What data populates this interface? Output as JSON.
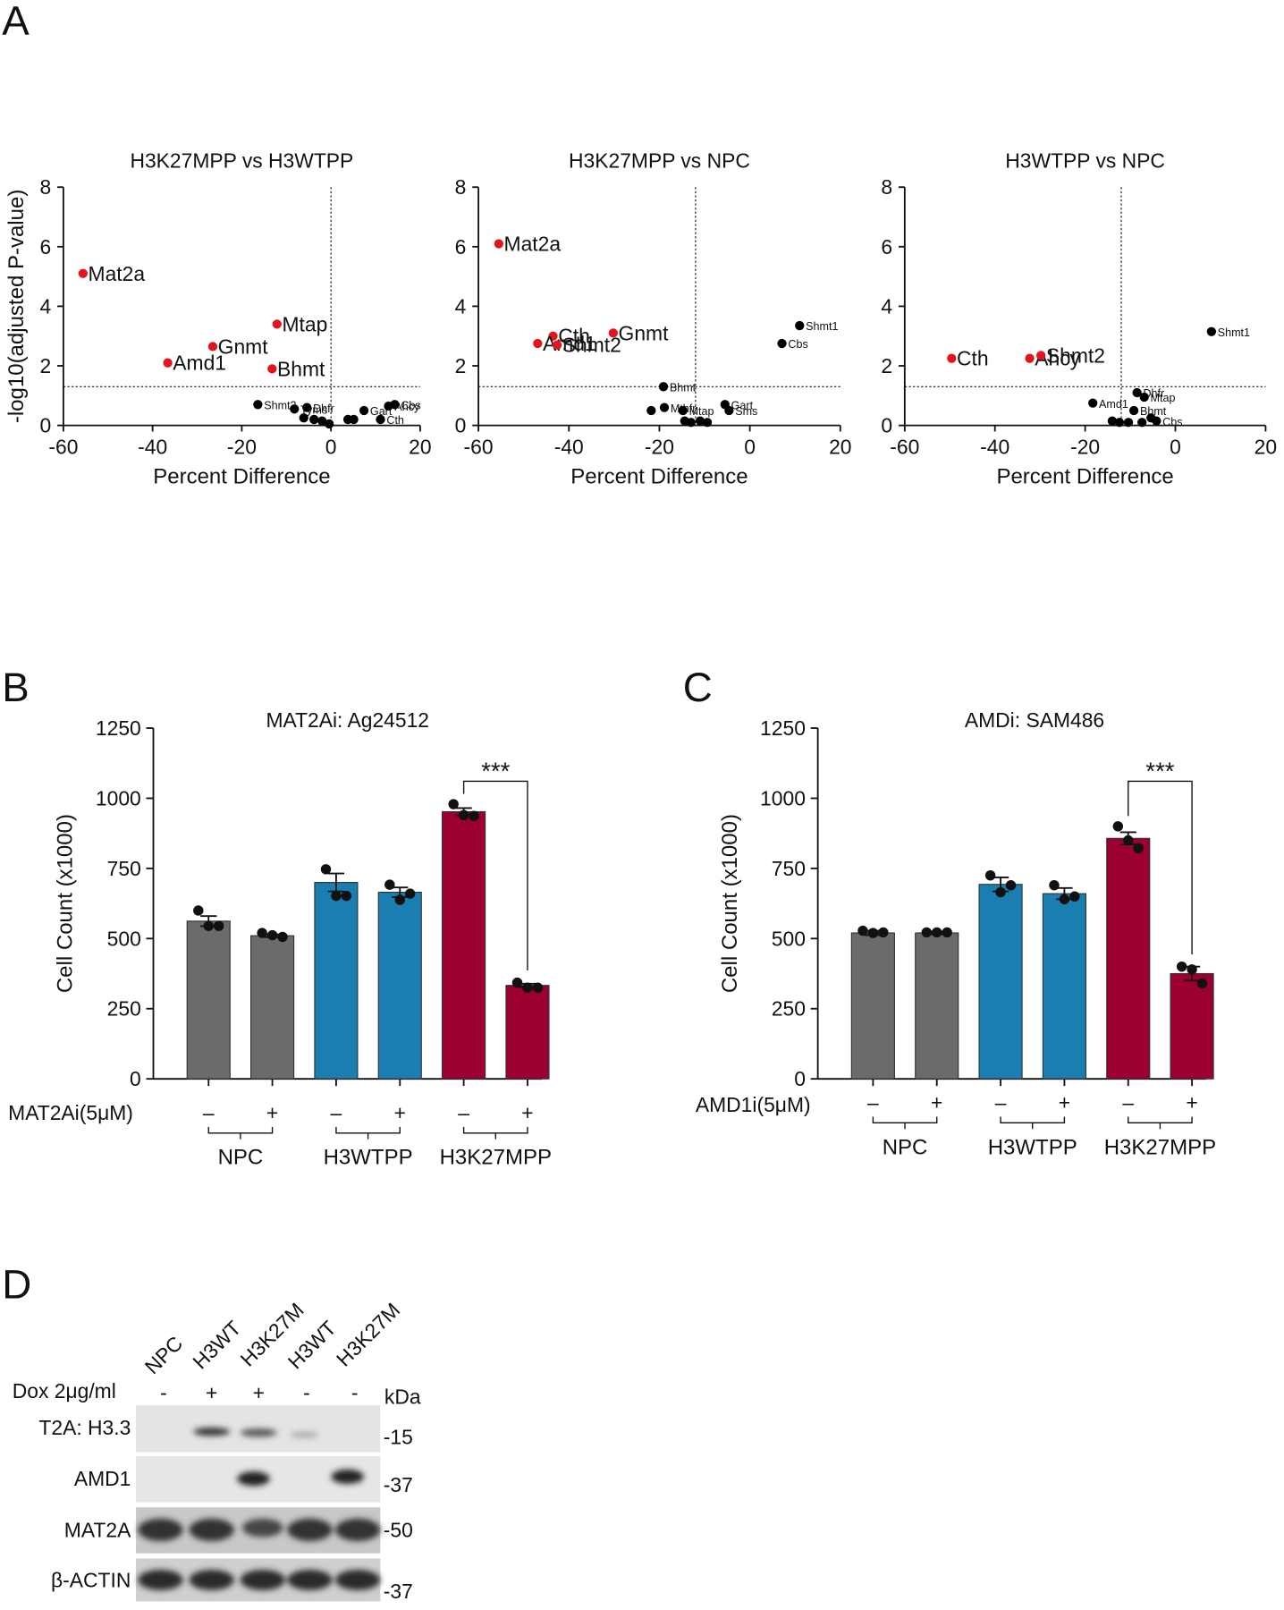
{
  "panel_labels": [
    "A",
    "B",
    "C",
    "D"
  ],
  "chart_data": [
    {
      "type": "scatter",
      "title": "H3K27MPP vs H3WTPP",
      "xlabel": "Percent Difference",
      "ylabel": "-log10(adjusted P-value)",
      "xlim": [
        -60,
        20
      ],
      "ylim": [
        0,
        8
      ],
      "xticks": [
        -60,
        -40,
        -20,
        0,
        20
      ],
      "yticks": [
        0,
        2,
        4,
        6,
        8
      ],
      "hline": 1.3,
      "vline": 0,
      "series": [
        {
          "color": "#e3141b",
          "label_size": "large",
          "x": [
            -55.6,
            -26.5,
            -36.6,
            -12.1,
            -13.2
          ],
          "y": [
            5.1,
            2.65,
            2.1,
            3.4,
            1.9
          ],
          "labels": [
            "Mat2a",
            "Gnmt",
            "Amd1",
            "Mtap",
            "Bhmt"
          ]
        },
        {
          "color": "#000000",
          "label_size": "small",
          "x": [
            -16.4,
            -5.4,
            -8.2,
            -6.1,
            -3.8,
            -2,
            -0.4,
            3.8,
            5.1,
            7.4,
            12.9,
            14.3,
            11.1
          ],
          "y": [
            0.7,
            0.6,
            0.55,
            0.25,
            0.2,
            0.15,
            0.05,
            0.2,
            0.2,
            0.5,
            0.65,
            0.7,
            0.2
          ],
          "labels": [
            "Shmt2",
            "Dhfr",
            "Tyms",
            null,
            null,
            null,
            null,
            null,
            null,
            "Gart",
            "Ahcy",
            "Cbs",
            "Cth"
          ]
        }
      ]
    },
    {
      "type": "scatter",
      "title": "H3K27MPP vs NPC",
      "xlabel": "Percent Difference",
      "xlim": [
        -60,
        20
      ],
      "ylim": [
        0,
        8
      ],
      "xticks": [
        -60,
        -40,
        -20,
        0,
        20
      ],
      "yticks": [
        0,
        2,
        4,
        6,
        8
      ],
      "hline": 1.3,
      "vline": -12,
      "series": [
        {
          "color": "#e3141b",
          "label_size": "large",
          "x": [
            -55.5,
            -43.5,
            -46.9,
            -42.6,
            -30.2
          ],
          "y": [
            6.1,
            3.0,
            2.75,
            2.7,
            3.1
          ],
          "labels": [
            "Mat2a",
            "Cth",
            "Amd1",
            "Shmt2",
            "Gnmt"
          ]
        },
        {
          "color": "#000000",
          "label_size": "small",
          "x": [
            11,
            7.1,
            -19.1,
            -18.9,
            -21.8,
            -14.8,
            -5.5,
            -4.6,
            -14.4,
            -13,
            -11,
            -9.4
          ],
          "y": [
            3.35,
            2.75,
            1.3,
            0.6,
            0.5,
            0.5,
            0.7,
            0.5,
            0.15,
            0.1,
            0.15,
            0.1
          ],
          "labels": [
            "Shmt1",
            "Cbs",
            "Bhmt",
            "Mthfr",
            null,
            "Mtap",
            "Gart",
            "Sms",
            null,
            null,
            null,
            null
          ]
        }
      ]
    },
    {
      "type": "scatter",
      "title": "H3WTPP vs NPC",
      "xlabel": "Percent Difference",
      "xlim": [
        -60,
        20
      ],
      "ylim": [
        0,
        8
      ],
      "xticks": [
        -60,
        -40,
        -20,
        0,
        20
      ],
      "yticks": [
        0,
        2,
        4,
        6,
        8
      ],
      "hline": 1.3,
      "vline": -12,
      "series": [
        {
          "color": "#e3141b",
          "label_size": "large",
          "x": [
            -49.6,
            -32.3,
            -29.8
          ],
          "y": [
            2.25,
            2.25,
            2.35
          ],
          "labels": [
            "Cth",
            "Ahcy",
            "Shmt2"
          ]
        },
        {
          "color": "#000000",
          "label_size": "small",
          "x": [
            8,
            -18.3,
            -8.5,
            -6.9,
            -9.2,
            -4.2,
            -14,
            -12.4,
            -10.4,
            -7.4,
            -5.4
          ],
          "y": [
            3.15,
            0.75,
            1.1,
            0.95,
            0.5,
            0.15,
            0.15,
            0.1,
            0.1,
            0.1,
            0.25
          ],
          "labels": [
            "Shmt1",
            "Amd1",
            "Dhfr",
            "Mtap",
            "Bhmt",
            "Cbs",
            null,
            null,
            null,
            null,
            null
          ]
        }
      ]
    },
    {
      "type": "bar",
      "title": "MAT2Ai: Ag24512",
      "ylabel": "Cell Count (x1000)",
      "treatment_label": "MAT2Ai(5μM)",
      "categories": [
        "–",
        "+",
        "–",
        "+",
        "–",
        "+"
      ],
      "groups": [
        "NPC",
        "H3WTPP",
        "H3K27MPP"
      ],
      "values": [
        562,
        510,
        700,
        665,
        952,
        333
      ],
      "errors": [
        18,
        5,
        32,
        17,
        13,
        6
      ],
      "points": [
        [
          600,
          545,
          545
        ],
        [
          520,
          512,
          506
        ],
        [
          747,
          652,
          652
        ],
        [
          692,
          638,
          660
        ],
        [
          979,
          940,
          937
        ],
        [
          343,
          325,
          325
        ]
      ],
      "colors": [
        "#6b6b6b",
        "#6b6b6b",
        "#1a7fb0",
        "#1a7fb0",
        "#9b0030",
        "#9b0030"
      ],
      "significance": "***",
      "ylim": [
        0,
        1250
      ],
      "yticks": [
        0,
        250,
        500,
        750,
        1000,
        1250
      ]
    },
    {
      "type": "bar",
      "title": "AMDi: SAM486",
      "ylabel": "Cell Count (x1000)",
      "treatment_label": "AMD1i(5μM)",
      "categories": [
        "–",
        "+",
        "–",
        "+",
        "–",
        "+"
      ],
      "groups": [
        "NPC",
        "H3WTPP",
        "H3K27MPP"
      ],
      "values": [
        520,
        520,
        693,
        660,
        857,
        375
      ],
      "errors": [
        8,
        5,
        25,
        20,
        22,
        25
      ],
      "points": [
        [
          528,
          520,
          522
        ],
        [
          522,
          522,
          522
        ],
        [
          725,
          665,
          690
        ],
        [
          690,
          640,
          650
        ],
        [
          900,
          850,
          822
        ],
        [
          400,
          390,
          340
        ]
      ],
      "colors": [
        "#6b6b6b",
        "#6b6b6b",
        "#1a7fb0",
        "#1a7fb0",
        "#9b0030",
        "#9b0030"
      ],
      "significance": "***",
      "ylim": [
        0,
        1250
      ],
      "yticks": [
        0,
        250,
        500,
        750,
        1000,
        1250
      ]
    }
  ],
  "blot": {
    "lanes": [
      "NPC",
      "H3WT",
      "H3K27M",
      "H3WT",
      "H3K27M"
    ],
    "dox_label": "Dox 2μg/ml",
    "dox": [
      "-",
      "+",
      "+",
      "-",
      "-"
    ],
    "kda_label": "kDa",
    "rows": [
      {
        "label": "T2A: H3.3",
        "marker": "-15"
      },
      {
        "label": "AMD1",
        "marker": "-37"
      },
      {
        "label": "MAT2A",
        "marker": "-50"
      },
      {
        "label": "β-ACTIN",
        "marker": "-37"
      }
    ]
  }
}
